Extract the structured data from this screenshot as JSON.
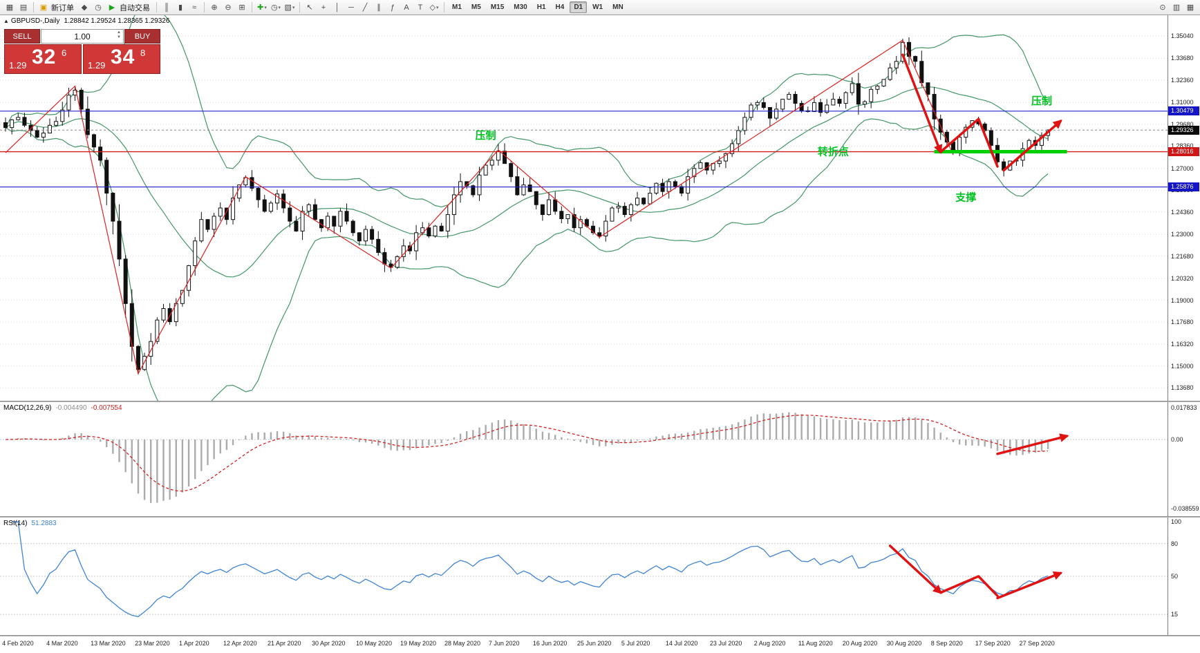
{
  "toolbar": {
    "items": [
      {
        "name": "new-chart-icon",
        "glyph": "▦"
      },
      {
        "name": "chart-profiles-icon",
        "glyph": "▤"
      },
      {
        "sep": true
      },
      {
        "name": "new-order-button",
        "glyph": "▣",
        "color": "#d79b00",
        "label": "新订单"
      },
      {
        "name": "mql-wizard-icon",
        "glyph": "◆"
      },
      {
        "name": "history-center-icon",
        "glyph": "◷"
      },
      {
        "name": "autotrading-button",
        "glyph": "▶",
        "color": "#1fa51f",
        "label": "自动交易"
      },
      {
        "sep": true
      },
      {
        "name": "bar-chart-icon",
        "glyph": "║"
      },
      {
        "name": "candlestick-chart-icon",
        "glyph": "▮"
      },
      {
        "name": "line-chart-icon",
        "glyph": "≈"
      },
      {
        "sep": true
      },
      {
        "name": "zoom-in-icon",
        "glyph": "⊕"
      },
      {
        "name": "zoom-out-icon",
        "glyph": "⊖"
      },
      {
        "name": "tile-windows-icon",
        "glyph": "⊞"
      },
      {
        "sep": true
      },
      {
        "name": "indicators-icon",
        "glyph": "✚",
        "color": "#1fa51f",
        "caret": true
      },
      {
        "name": "periods-icon",
        "glyph": "◷",
        "caret": true
      },
      {
        "name": "templates-icon",
        "glyph": "▧",
        "caret": true
      },
      {
        "sep": true
      },
      {
        "name": "cursor-icon",
        "glyph": "↖"
      },
      {
        "name": "crosshair-icon",
        "glyph": "+"
      },
      {
        "name": "vertical-line-icon",
        "glyph": "│"
      },
      {
        "name": "horizontal-line-icon",
        "glyph": "─"
      },
      {
        "name": "trendline-icon",
        "glyph": "╱"
      },
      {
        "name": "equidistant-channel-icon",
        "glyph": "∥"
      },
      {
        "name": "fibonacci-icon",
        "glyph": "ƒ"
      },
      {
        "name": "text-icon",
        "glyph": "A"
      },
      {
        "name": "text-label-icon",
        "glyph": "T"
      },
      {
        "name": "arrows-icon",
        "glyph": "◇",
        "caret": true
      },
      {
        "sep": true
      }
    ],
    "timeframes": [
      "M1",
      "M5",
      "M15",
      "M30",
      "H1",
      "H4",
      "D1",
      "W1",
      "MN"
    ],
    "active_timeframe": "D1",
    "right_items": [
      {
        "name": "magnifier-icon",
        "glyph": "⊙"
      },
      {
        "name": "new-window-icon",
        "glyph": "▥"
      },
      {
        "name": "cascade-windows-icon",
        "glyph": "▦"
      }
    ]
  },
  "chart_header": {
    "symbol": "GBPUSD-,Daily",
    "ohlc": "1.28842 1.29524 1.28365 1.29326"
  },
  "trade_panel": {
    "sell_label": "SELL",
    "buy_label": "BUY",
    "volume": "1.00",
    "sell_small": "1.29",
    "sell_big": "32",
    "sell_sup": "6",
    "buy_small": "1.29",
    "buy_big": "34",
    "buy_sup": "8"
  },
  "chart_data": {
    "type": "candlestick+indicators",
    "symbol": "GBPUSD-",
    "timeframe": "Daily",
    "price_range": {
      "top": 1.363,
      "bottom": 1.129
    },
    "price_axis": [
      "1.35040",
      "1.33680",
      "1.32360",
      "1.31000",
      "1.29680",
      "1.28360",
      "1.27000",
      "1.25680",
      "1.24360",
      "1.23000",
      "1.21680",
      "1.20320",
      "1.19000",
      "1.17680",
      "1.16320",
      "1.15000",
      "1.13680"
    ],
    "x_labels": [
      "4 Feb 2020",
      "4 Mar 2020",
      "13 Mar 2020",
      "23 Mar 2020",
      "1 Apr 2020",
      "12 Apr 2020",
      "21 Apr 2020",
      "30 Apr 2020",
      "10 May 2020",
      "19 May 2020",
      "28 May 2020",
      "7 Jun 2020",
      "16 Jun 2020",
      "25 Jun 2020",
      "5 Jul 2020",
      "14 Jul 2020",
      "23 Jul 2020",
      "2 Aug 2020",
      "11 Aug 2020",
      "20 Aug 2020",
      "30 Aug 2020",
      "8 Sep 2020",
      "17 Sep 2020",
      "27 Sep 2020"
    ],
    "x_label_start": 1,
    "x_label_step": 7,
    "closes": [
      1.2948,
      1.2995,
      1.301,
      1.2962,
      1.293,
      1.289,
      1.2915,
      1.2962,
      1.2985,
      1.3055,
      1.3145,
      1.3175,
      1.306,
      1.2905,
      1.283,
      1.275,
      1.255,
      1.238,
      1.215,
      1.188,
      1.162,
      1.148,
      1.156,
      1.165,
      1.178,
      1.185,
      1.177,
      1.188,
      1.196,
      1.211,
      1.226,
      1.239,
      1.233,
      1.241,
      1.246,
      1.239,
      1.252,
      1.26,
      1.2645,
      1.258,
      1.251,
      1.244,
      1.249,
      1.2545,
      1.246,
      1.238,
      1.232,
      1.244,
      1.248,
      1.239,
      1.234,
      1.241,
      1.235,
      1.244,
      1.238,
      1.231,
      1.226,
      1.233,
      1.227,
      1.219,
      1.212,
      1.21,
      1.2165,
      1.223,
      1.22,
      1.231,
      1.234,
      1.229,
      1.235,
      1.232,
      1.242,
      1.254,
      1.262,
      1.2595,
      1.254,
      1.266,
      1.272,
      1.275,
      1.2805,
      1.273,
      1.265,
      1.254,
      1.26,
      1.256,
      1.248,
      1.242,
      1.251,
      1.244,
      1.2395,
      1.242,
      1.234,
      1.239,
      1.235,
      1.231,
      1.229,
      1.238,
      1.246,
      1.247,
      1.242,
      1.248,
      1.252,
      1.2485,
      1.255,
      1.261,
      1.256,
      1.262,
      1.259,
      1.255,
      1.265,
      1.27,
      1.2735,
      1.269,
      1.273,
      1.2745,
      1.279,
      1.285,
      1.293,
      1.301,
      1.3085,
      1.31,
      1.307,
      1.3005,
      1.306,
      1.312,
      1.315,
      1.3095,
      1.305,
      1.3045,
      1.31,
      1.304,
      1.3085,
      1.312,
      1.3095,
      1.316,
      1.3215,
      1.309,
      1.3105,
      1.318,
      1.32,
      1.324,
      1.331,
      1.335,
      1.3465,
      1.338,
      1.335,
      1.322,
      1.315,
      1.3,
      1.292,
      1.286,
      1.28,
      1.289,
      1.295,
      1.299,
      1.297,
      1.293,
      1.284,
      1.274,
      1.269,
      1.2745,
      1.275,
      1.282,
      1.287,
      1.284,
      1.29,
      1.2933
    ],
    "hlines": [
      {
        "price": 1.30479,
        "color": "#2121cc",
        "width": 1.2
      },
      {
        "price": 1.28016,
        "color": "#d51a1a",
        "width": 1.3
      },
      {
        "price": 1.25876,
        "color": "#2121cc",
        "width": 1.2
      }
    ],
    "bid_line": {
      "price": 1.29326,
      "color": "#8a8a8a"
    },
    "badges": [
      {
        "label": "1.30479",
        "price": 1.30479,
        "color": "#1515c8"
      },
      {
        "label": "1.29326",
        "price": 1.29326,
        "color": "#0a0a0a"
      },
      {
        "label": "1.28016",
        "price": 1.28016,
        "color": "#cf1515"
      },
      {
        "label": "1.25876",
        "price": 1.25876,
        "color": "#1515c8"
      }
    ],
    "zigzag": [
      [
        0,
        1.2795
      ],
      [
        11,
        1.32
      ],
      [
        21,
        1.1455
      ],
      [
        38,
        1.265
      ],
      [
        61,
        1.2095
      ],
      [
        78,
        1.2812
      ],
      [
        94,
        1.2282
      ],
      [
        142,
        1.3478
      ],
      [
        150,
        1.2782
      ]
    ],
    "support_line": {
      "price": 1.28016,
      "from_bar": 147,
      "to_bar": 168,
      "color": "#00cf00"
    },
    "arrows": [
      {
        "points": [
          [
            142,
            1.339
          ],
          [
            148,
            1.28
          ]
        ],
        "head": true
      },
      {
        "points": [
          [
            148,
            1.28
          ],
          [
            154,
            1.3
          ],
          [
            157,
            1.2712
          ]
        ],
        "head": false
      },
      {
        "points": [
          [
            158,
            1.2688
          ],
          [
            167,
            1.2988
          ]
        ],
        "head": true
      }
    ],
    "annotations": [
      {
        "text": "压制",
        "bar": 76,
        "price": 1.288
      },
      {
        "text": "压制",
        "bar": 164,
        "price": 1.309
      },
      {
        "text": "转折点",
        "bar": 131,
        "price": 1.278
      },
      {
        "text": "支撑",
        "bar": 152,
        "price": 1.2505
      }
    ],
    "macd": {
      "label": "MACD(12,26,9)",
      "v1": "-0.004490",
      "v2": "-0.007554",
      "axis": [
        "0.017833",
        "0.00",
        "-0.038559"
      ],
      "range": {
        "top": 0.021,
        "bottom": -0.043
      },
      "arrow": {
        "points": [
          [
            157,
            -0.008
          ],
          [
            168,
            0.002
          ]
        ],
        "head": true
      }
    },
    "rsi": {
      "label": "RSI(14)",
      "value": "51.2883",
      "axis": [
        "100",
        "80",
        "50",
        "15"
      ],
      "levels": [
        80,
        50,
        15
      ],
      "arrows": [
        {
          "points": [
            [
              140,
              78
            ],
            [
              148,
              35
            ]
          ],
          "head": true
        },
        {
          "points": [
            [
              148,
              35
            ],
            [
              154,
              50
            ],
            [
              157,
              32
            ]
          ],
          "head": false
        },
        {
          "points": [
            [
              157,
              30
            ],
            [
              167,
              53
            ]
          ],
          "head": true
        }
      ]
    },
    "colors": {
      "candle_up": "#ffffff",
      "candle_down": "#111111",
      "candle_line": "#111111",
      "bollinger": "#2e8b57",
      "zigzag": "#e02020",
      "arrow": "#e01212",
      "annotation": "#00c322",
      "rsi_line": "#3f83d6",
      "macd_hist": "#ababab",
      "macd_signal": "#d42020"
    }
  }
}
